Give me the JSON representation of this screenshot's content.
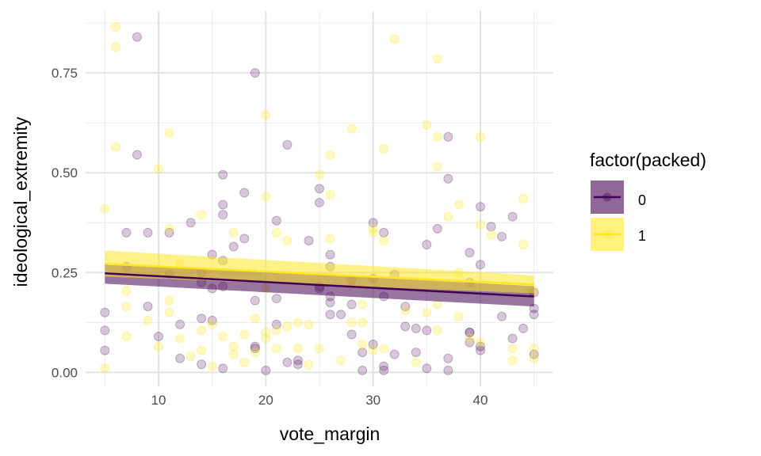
{
  "chart_data": {
    "type": "scatter",
    "xlabel": "vote_margin",
    "ylabel": "ideological_extremity",
    "xlim": [
      3.2,
      46.8
    ],
    "ylim": [
      -0.035,
      0.905
    ],
    "x_ticks": [
      10,
      20,
      30,
      40
    ],
    "x_tick_labels": [
      "10",
      "20",
      "30",
      "40"
    ],
    "y_ticks": [
      0,
      0.25,
      0.5,
      0.75
    ],
    "y_tick_labels": [
      "0.00",
      "0.25",
      "0.50",
      "0.75"
    ],
    "grid": true,
    "legend": {
      "title": "factor(packed)",
      "position": "right",
      "entries": [
        "0",
        "1"
      ]
    },
    "series": [
      {
        "name": "0",
        "color": "#440154",
        "point_alpha": 0.22,
        "points": [
          [
            5,
            0.15
          ],
          [
            5,
            0.105
          ],
          [
            5,
            0.055
          ],
          [
            7,
            0.35
          ],
          [
            7,
            0.265
          ],
          [
            8,
            0.84
          ],
          [
            8,
            0.545
          ],
          [
            9,
            0.35
          ],
          [
            9,
            0.165
          ],
          [
            10,
            0.09
          ],
          [
            11,
            0.35
          ],
          [
            11,
            0.245
          ],
          [
            12,
            0.12
          ],
          [
            12,
            0.035
          ],
          [
            13,
            0.375
          ],
          [
            14,
            0.25
          ],
          [
            14,
            0.225
          ],
          [
            14,
            0.135
          ],
          [
            14,
            0.02
          ],
          [
            15,
            0.295
          ],
          [
            15,
            0.21
          ],
          [
            15,
            0.13
          ],
          [
            16,
            0.495
          ],
          [
            16,
            0.42
          ],
          [
            16,
            0.395
          ],
          [
            16,
            0.28
          ],
          [
            16,
            0.215
          ],
          [
            16,
            0.01
          ],
          [
            17,
            0.315
          ],
          [
            18,
            0.45
          ],
          [
            18,
            0.335
          ],
          [
            19,
            0.75
          ],
          [
            19,
            0.18
          ],
          [
            19,
            0.065
          ],
          [
            19,
            0.06
          ],
          [
            20,
            0.005
          ],
          [
            21,
            0.38
          ],
          [
            21,
            0.185
          ],
          [
            21,
            0.12
          ],
          [
            22,
            0.57
          ],
          [
            22,
            0.025
          ],
          [
            23,
            0.03
          ],
          [
            23,
            0.02
          ],
          [
            24,
            0.33
          ],
          [
            25,
            0.46
          ],
          [
            25,
            0.425
          ],
          [
            25,
            0.215
          ],
          [
            25,
            0.21
          ],
          [
            26,
            0.295
          ],
          [
            26,
            0.265
          ],
          [
            26,
            0.19
          ],
          [
            26,
            0.175
          ],
          [
            26,
            0.145
          ],
          [
            27,
            0.145
          ],
          [
            28,
            0.23
          ],
          [
            28,
            0.17
          ],
          [
            28,
            0.095
          ],
          [
            29,
            0.005
          ],
          [
            29,
            0.05
          ],
          [
            30,
            0.375
          ],
          [
            30,
            0.235
          ],
          [
            30,
            0.07
          ],
          [
            31,
            0.35
          ],
          [
            31,
            0.19
          ],
          [
            31,
            0.015
          ],
          [
            31,
            0.005
          ],
          [
            32,
            0.245
          ],
          [
            32,
            0.045
          ],
          [
            33,
            0.165
          ],
          [
            33,
            0.115
          ],
          [
            34,
            0.11
          ],
          [
            34,
            0.05
          ],
          [
            35,
            0.32
          ],
          [
            35,
            0.105
          ],
          [
            35,
            0.01
          ],
          [
            36,
            0.36
          ],
          [
            37,
            0.59
          ],
          [
            37,
            0.485
          ],
          [
            37,
            0.035
          ],
          [
            37,
            0.005
          ],
          [
            39,
            0.3
          ],
          [
            39,
            0.225
          ],
          [
            39,
            0.1
          ],
          [
            39,
            0.1
          ],
          [
            39,
            0.075
          ],
          [
            40,
            0.415
          ],
          [
            40,
            0.27
          ],
          [
            40,
            0.065
          ],
          [
            40,
            0.055
          ],
          [
            41,
            0.365
          ],
          [
            42,
            0.34
          ],
          [
            42,
            0.14
          ],
          [
            43,
            0.39
          ],
          [
            43,
            0.085
          ],
          [
            44,
            0.11
          ],
          [
            45,
            0.2
          ],
          [
            45,
            0.16
          ],
          [
            45,
            0.145
          ],
          [
            45,
            0.045
          ]
        ],
        "fit": {
          "x": [
            5,
            45
          ],
          "y": [
            0.248,
            0.19
          ]
        },
        "ci_lower": [
          0.222,
          0.165
        ],
        "ci_upper": [
          0.274,
          0.216
        ]
      },
      {
        "name": "1",
        "color": "#FDE725",
        "point_alpha": 0.28,
        "points": [
          [
            5,
            0.41
          ],
          [
            5,
            0.01
          ],
          [
            6,
            0.865
          ],
          [
            6,
            0.815
          ],
          [
            6,
            0.565
          ],
          [
            7,
            0.205
          ],
          [
            7,
            0.165
          ],
          [
            7,
            0.09
          ],
          [
            9,
            0.13
          ],
          [
            10,
            0.51
          ],
          [
            10,
            0.065
          ],
          [
            11,
            0.6
          ],
          [
            11,
            0.36
          ],
          [
            11,
            0.18
          ],
          [
            11,
            0.15
          ],
          [
            12,
            0.27
          ],
          [
            12,
            0.085
          ],
          [
            13,
            0.04
          ],
          [
            14,
            0.395
          ],
          [
            14,
            0.105
          ],
          [
            14,
            0.055
          ],
          [
            15,
            0.12
          ],
          [
            15,
            0.015
          ],
          [
            16,
            0.09
          ],
          [
            17,
            0.35
          ],
          [
            17,
            0.065
          ],
          [
            17,
            0.045
          ],
          [
            18,
            0.095
          ],
          [
            18,
            0.025
          ],
          [
            19,
            0.135
          ],
          [
            19,
            0.05
          ],
          [
            20,
            0.645
          ],
          [
            20,
            0.44
          ],
          [
            20,
            0.21
          ],
          [
            20,
            0.1
          ],
          [
            20,
            0.085
          ],
          [
            21,
            0.35
          ],
          [
            21,
            0.105
          ],
          [
            21,
            0.06
          ],
          [
            22,
            0.33
          ],
          [
            22,
            0.115
          ],
          [
            23,
            0.125
          ],
          [
            23,
            0.06
          ],
          [
            24,
            0.12
          ],
          [
            24,
            0.02
          ],
          [
            25,
            0.495
          ],
          [
            25,
            0.06
          ],
          [
            26,
            0.545
          ],
          [
            26,
            0.445
          ],
          [
            26,
            0.335
          ],
          [
            27,
            0.03
          ],
          [
            28,
            0.61
          ],
          [
            28,
            0.125
          ],
          [
            29,
            0.17
          ],
          [
            29,
            0.125
          ],
          [
            29,
            0.07
          ],
          [
            30,
            0.36
          ],
          [
            30,
            0.35
          ],
          [
            30,
            0.055
          ],
          [
            31,
            0.56
          ],
          [
            31,
            0.33
          ],
          [
            31,
            0.06
          ],
          [
            32,
            0.835
          ],
          [
            33,
            0.155
          ],
          [
            34,
            0.025
          ],
          [
            35,
            0.62
          ],
          [
            35,
            0.15
          ],
          [
            36,
            0.785
          ],
          [
            36,
            0.59
          ],
          [
            36,
            0.515
          ],
          [
            36,
            0.17
          ],
          [
            36,
            0.105
          ],
          [
            37,
            0.39
          ],
          [
            38,
            0.42
          ],
          [
            38,
            0.25
          ],
          [
            38,
            0.14
          ],
          [
            39,
            0.085
          ],
          [
            40,
            0.59
          ],
          [
            40,
            0.37
          ],
          [
            40,
            0.075
          ],
          [
            41,
            0.345
          ],
          [
            43,
            0.06
          ],
          [
            43,
            0.03
          ],
          [
            44,
            0.435
          ],
          [
            44,
            0.32
          ],
          [
            45,
            0.205
          ],
          [
            45,
            0.06
          ],
          [
            45,
            0.035
          ]
        ],
        "fit": {
          "x": [
            5,
            45
          ],
          "y": [
            0.272,
            0.22
          ]
        },
        "ci_lower": [
          0.24,
          0.198
        ],
        "ci_upper": [
          0.305,
          0.243
        ]
      }
    ]
  }
}
